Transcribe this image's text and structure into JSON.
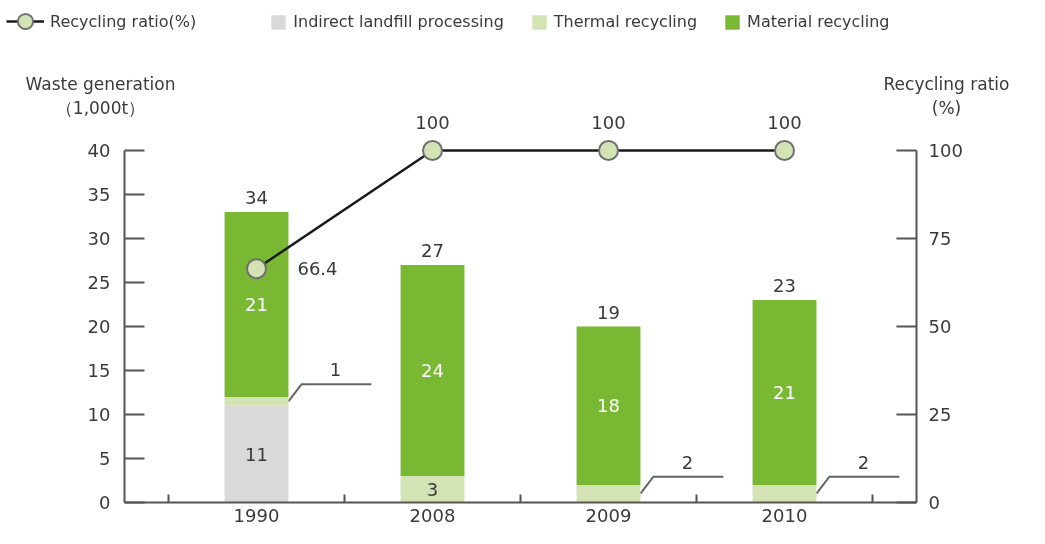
{
  "chart_data": {
    "type": "bar",
    "stacked": true,
    "categories": [
      "1990",
      "2008",
      "2009",
      "2010"
    ],
    "ylabel": "Waste generation\n（1,000t）",
    "y2label": "Recycling ratio\n(%)",
    "ylim": [
      0,
      40
    ],
    "yticks": [
      0,
      5,
      10,
      15,
      20,
      25,
      30,
      35,
      40
    ],
    "y2lim": [
      0,
      100
    ],
    "y2ticks": [
      0,
      25,
      50,
      75,
      100
    ],
    "series": [
      {
        "name": "Indirect landfill processing",
        "color": "#d9d9d9",
        "values": [
          11,
          null,
          null,
          null
        ]
      },
      {
        "name": "Thermal recycling",
        "color": "#d3e3b4",
        "values": [
          1,
          3,
          2,
          2
        ]
      },
      {
        "name": "Material recycling",
        "color": "#79b833",
        "values": [
          21,
          24,
          18,
          21
        ]
      },
      {
        "name": "Recycling ratio(%)",
        "type": "line",
        "axis": "y2",
        "color": "#1a1a1a",
        "values": [
          66.4,
          100,
          100,
          100
        ]
      }
    ],
    "totals": [
      "34",
      "27",
      "19",
      "23"
    ],
    "data_labels": true,
    "legend": "top",
    "marker": "circle",
    "line_style": "solid"
  }
}
